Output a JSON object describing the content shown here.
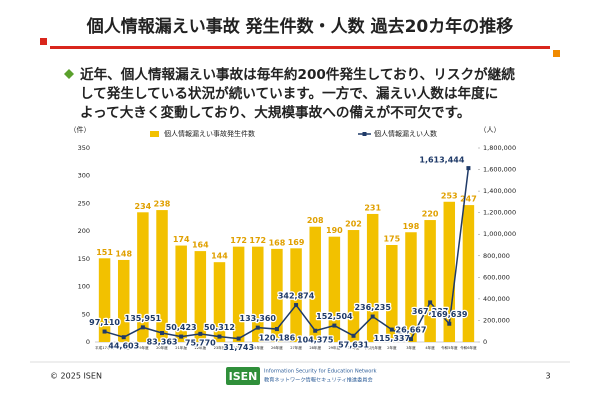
{
  "slide": {
    "title": "個人情報漏えい事故 発生件数・人数 過去20カ年の推移",
    "body_lines": [
      "近年、個人情報漏えい事故は毎年約200件発生しており、リスクが継続",
      "して発生している状況が続いています。一方で、漏えい人数は年度に",
      "よって大きく変動しており、大規模事故への備えが不可欠です。"
    ],
    "footer": {
      "copyright": "© 2025 ISEN",
      "logo": "ISEN",
      "org_en": "Information Security for Education Network",
      "org_ja": "教育ネットワーク情報セキュリティ推進委員会",
      "page": "3"
    }
  },
  "chart_data": {
    "type": "bar_line",
    "y_label": "（件）",
    "y2_label": "（人）",
    "legend": "top",
    "categories": [
      "平成17年度",
      "18年度",
      "19年度",
      "20年度",
      "21年度",
      "22年度",
      "23年度",
      "24年度",
      "25年度",
      "26年度",
      "27年度",
      "28年度",
      "29年度",
      "30年度",
      "令和元年度",
      "2年度",
      "3年度",
      "4年度",
      "令和5年度",
      "令和6年度"
    ],
    "series": [
      {
        "name": "個人情報漏えい事故発生件数",
        "type": "bar",
        "color": "#f2c100",
        "label_color": "#e0a000",
        "values": [
          151,
          148,
          234,
          238,
          174,
          164,
          144,
          172,
          172,
          168,
          169,
          208,
          190,
          202,
          231,
          175,
          198,
          220,
          253,
          247
        ]
      },
      {
        "name": "個人情報漏えい人数",
        "type": "line",
        "axis": "y2",
        "color": "#1f3a68",
        "values": [
          97110,
          44603,
          135951,
          83363,
          50423,
          75770,
          50312,
          31743,
          133360,
          120186,
          342874,
          104375,
          152504,
          57631,
          236235,
          115337,
          26667,
          367337,
          169639,
          1613444
        ],
        "value_labels": [
          "97,110",
          "44,603",
          "135,951",
          "83,363",
          "50,423",
          "75,770",
          "50,312",
          "31,743",
          "133,360",
          "120,186",
          "342,874",
          "104,375",
          "152,504",
          "57,631",
          "236,235",
          "115,337",
          "26,667",
          "367,337",
          "169,639",
          "1,613,444"
        ]
      }
    ],
    "ylim": [
      0,
      350
    ],
    "yticks": [
      0,
      50,
      100,
      150,
      200,
      250,
      300,
      350
    ],
    "y2lim": [
      0,
      1800000
    ],
    "y2ticks": [
      0,
      {
        "value": 200000,
        "label": "200,000"
      },
      {
        "value": 400000,
        "label": "400,000"
      },
      {
        "value": 600000,
        "label": "600,000"
      },
      {
        "value": 800000,
        "label": "800,000"
      },
      {
        "value": 1000000,
        "label": "1,000,000"
      },
      {
        "value": 1200000,
        "label": "1,200,000"
      },
      {
        "value": 1400000,
        "label": "1,400,000"
      },
      {
        "value": 1600000,
        "label": "1,600,000"
      },
      {
        "value": 1800000,
        "label": "1,800,000"
      }
    ],
    "grid": false
  }
}
